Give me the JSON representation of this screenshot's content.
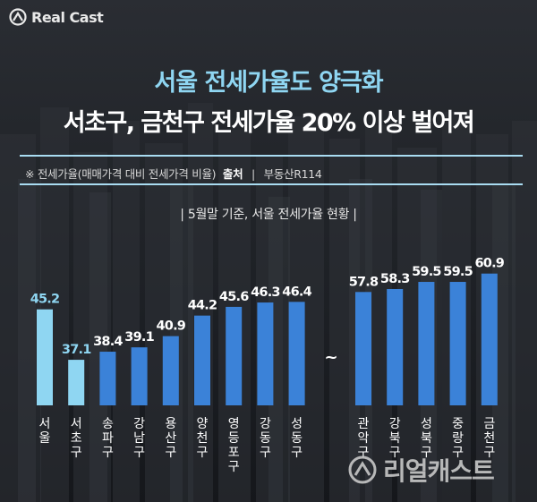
{
  "brand": {
    "logo_text": "Real Cast",
    "watermark_text": "리얼캐스트"
  },
  "headline": {
    "title": "서울 전세가율도 양극화",
    "subtitle": "서초구, 금천구 전세가율 20% 이상 벌어져"
  },
  "note": {
    "definition": "※ 전세가율(매매가격 대비 전세가격 비율)",
    "source_label": "출처",
    "separator": "|",
    "source": "부동산R114"
  },
  "colors": {
    "highlight": "#8fd6f2",
    "bar": "#3b82d8",
    "label": "#ffffff",
    "rule": "#a9dcf2"
  },
  "chart_data": {
    "type": "bar",
    "title": "| 5월말 기준, 서울 전세가율 현황 |",
    "break_symbol": "~",
    "groups": [
      {
        "categories": [
          "서울",
          "서초구",
          "송파구",
          "강남구",
          "용산구",
          "양천구",
          "영등포구",
          "강동구",
          "성동구"
        ],
        "values": [
          45.2,
          37.1,
          38.4,
          39.1,
          40.9,
          44.2,
          45.6,
          46.3,
          46.4
        ],
        "highlight": [
          true,
          true,
          false,
          false,
          false,
          false,
          false,
          false,
          false
        ]
      },
      {
        "categories": [
          "관악구",
          "강북구",
          "성북구",
          "중랑구",
          "금천구"
        ],
        "values": [
          57.8,
          58.3,
          59.5,
          59.5,
          60.9
        ],
        "highlight": [
          false,
          false,
          false,
          false,
          false
        ]
      }
    ]
  }
}
